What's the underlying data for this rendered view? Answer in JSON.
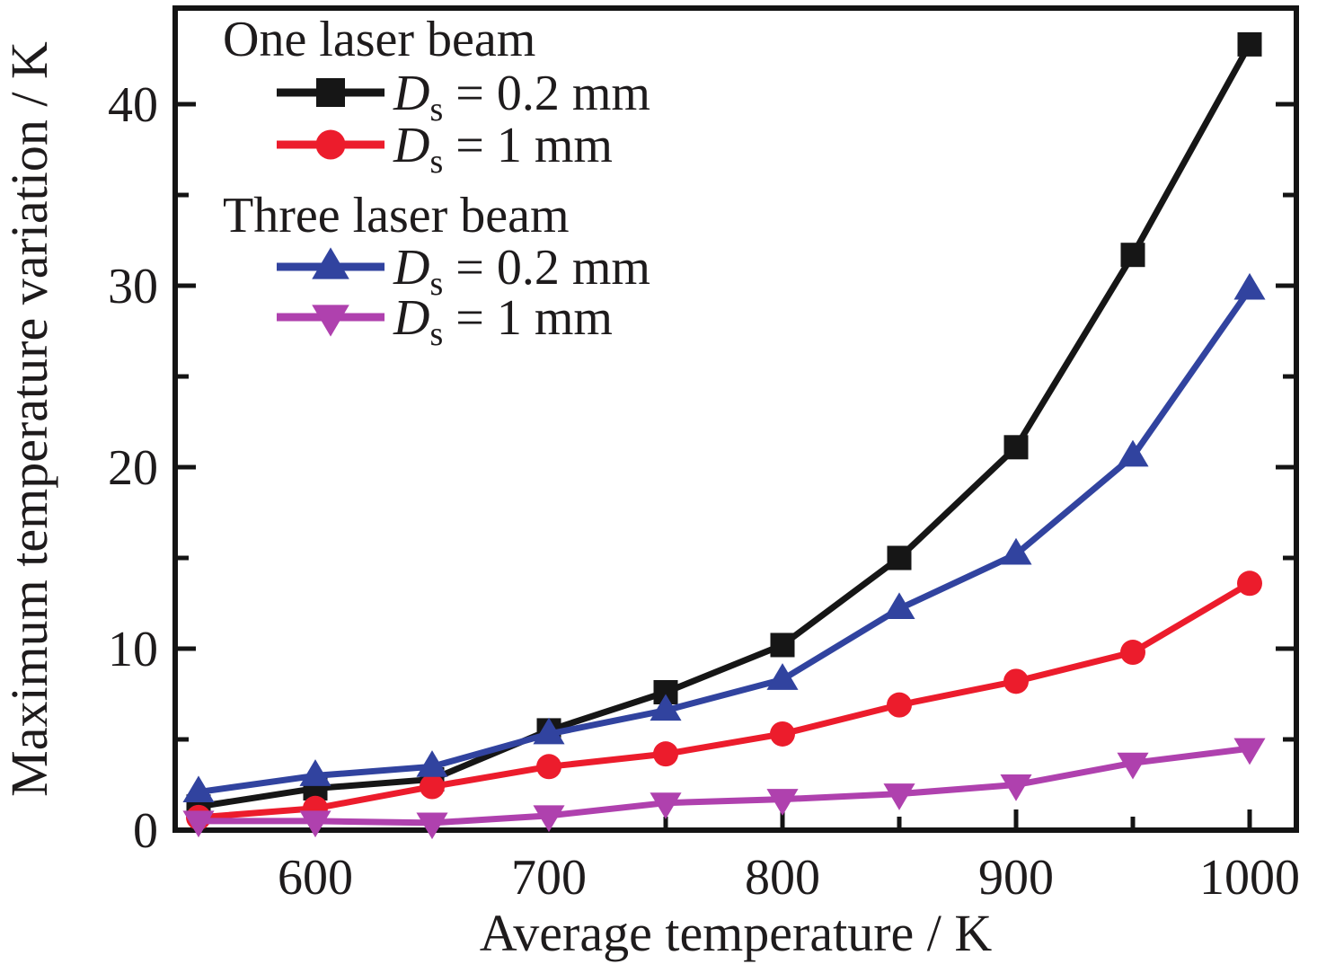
{
  "chart_data": {
    "type": "line",
    "title": "",
    "xlabel": "Average temperature / K",
    "ylabel": "Maximum temperature variation / K",
    "xlim": [
      540,
      1020
    ],
    "ylim": [
      0,
      45.3
    ],
    "grid": false,
    "legend_position": "top-left",
    "x": [
      550,
      600,
      650,
      700,
      750,
      800,
      850,
      900,
      950,
      1000
    ],
    "x_major_ticks": [
      600,
      700,
      800,
      900,
      1000
    ],
    "x_minor_ticks": [
      550,
      650,
      750,
      850,
      950
    ],
    "y_major_ticks": [
      0,
      10,
      20,
      30,
      40
    ],
    "y_minor_ticks": [
      5,
      15,
      25,
      35
    ],
    "legend_groups": [
      {
        "header": "One laser beam",
        "series": [
          0,
          1
        ]
      },
      {
        "header": "Three laser beam",
        "series": [
          2,
          3
        ]
      }
    ],
    "series": [
      {
        "name": "One laser beam Ds = 0.2 mm",
        "marker": "square",
        "color": "#161616",
        "legend_var": "D",
        "legend_sub": "s",
        "legend_rest": "= 0.2 mm",
        "values": [
          1.3,
          2.3,
          2.8,
          5.5,
          7.6,
          10.2,
          15.0,
          21.1,
          31.7,
          43.3
        ]
      },
      {
        "name": "One laser beam Ds = 1 mm",
        "marker": "circle",
        "color": "#ec1c2c",
        "legend_var": "D",
        "legend_sub": "s",
        "legend_rest": "= 1 mm",
        "values": [
          0.7,
          1.2,
          2.4,
          3.5,
          4.2,
          5.3,
          6.9,
          8.2,
          9.8,
          13.6
        ]
      },
      {
        "name": "Three laser beam Ds = 0.2 mm",
        "marker": "triangle-up",
        "color": "#31439f",
        "legend_var": "D",
        "legend_sub": "s",
        "legend_rest": "= 0.2 mm",
        "values": [
          2.1,
          3.0,
          3.5,
          5.3,
          6.6,
          8.3,
          12.2,
          15.2,
          20.6,
          29.8
        ]
      },
      {
        "name": "Three laser beam Ds = 1 mm",
        "marker": "triangle-down",
        "color": "#af41ae",
        "legend_var": "D",
        "legend_sub": "s",
        "legend_rest": "= 1 mm",
        "values": [
          0.5,
          0.5,
          0.4,
          0.8,
          1.5,
          1.7,
          2.0,
          2.5,
          3.7,
          4.5
        ]
      }
    ]
  }
}
